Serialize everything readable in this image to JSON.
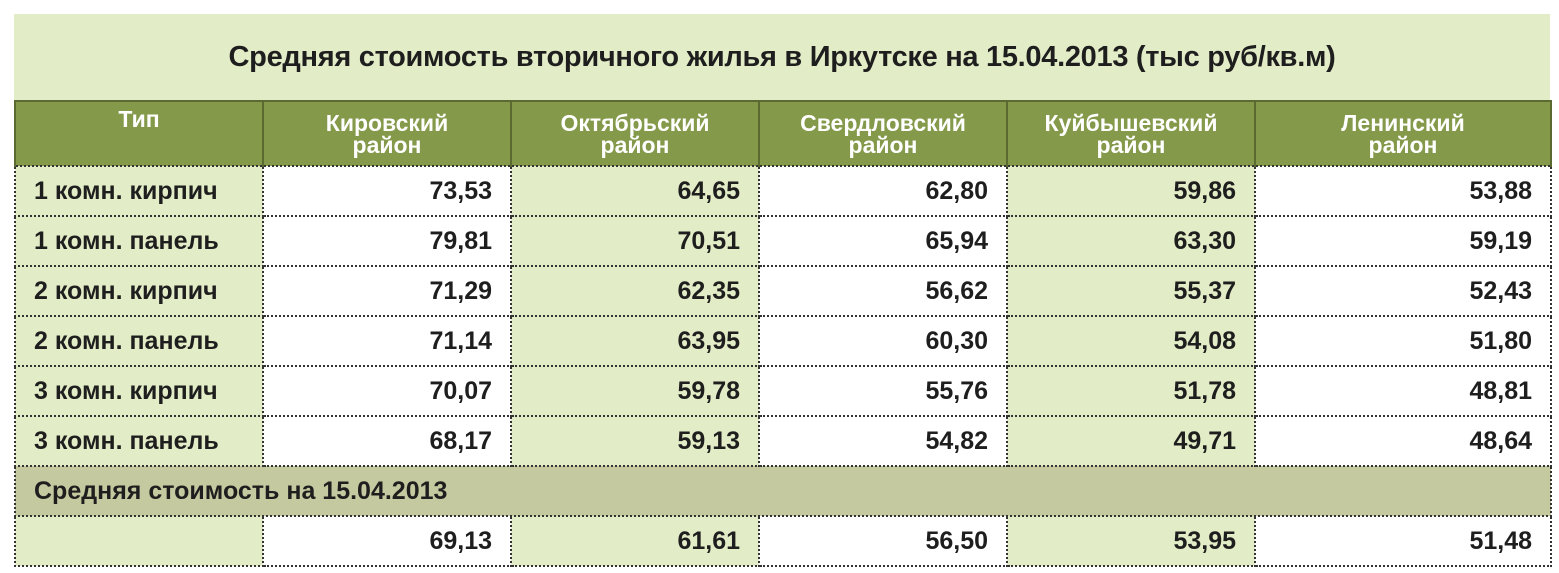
{
  "title": "Средняя стоимость вторичного жилья в Иркутске на 15.04.2013 (тыс руб/кв.м)",
  "headers": [
    {
      "line1": "Тип",
      "line2": ""
    },
    {
      "line1": "Кировский",
      "line2": "район"
    },
    {
      "line1": "Октябрьский",
      "line2": "район"
    },
    {
      "line1": "Свердловский",
      "line2": "район"
    },
    {
      "line1": "Куйбышевский",
      "line2": "район"
    },
    {
      "line1": "Ленинский",
      "line2": "район"
    }
  ],
  "rows": [
    {
      "type": "1 комн. кирпич",
      "values": [
        "73,53",
        "64,65",
        "62,80",
        "59,86",
        "53,88"
      ]
    },
    {
      "type": "1 комн. панель",
      "values": [
        "79,81",
        "70,51",
        "65,94",
        "63,30",
        "59,19"
      ]
    },
    {
      "type": "2 комн. кирпич",
      "values": [
        "71,29",
        "62,35",
        "56,62",
        "55,37",
        "52,43"
      ]
    },
    {
      "type": "2 комн. панель",
      "values": [
        "71,14",
        "63,95",
        "60,30",
        "54,08",
        "51,80"
      ]
    },
    {
      "type": "3 комн. кирпич",
      "values": [
        "70,07",
        "59,78",
        "55,76",
        "51,78",
        "48,81"
      ]
    },
    {
      "type": "3 комн. панель",
      "values": [
        "68,17",
        "59,13",
        "54,82",
        "49,71",
        "48,64"
      ]
    }
  ],
  "summary": {
    "label": "Средняя стоимость на 15.04.2013",
    "values": [
      "69,13",
      "61,61",
      "56,50",
      "53,95",
      "51,48"
    ]
  },
  "colors": {
    "header_bg": "#84994a",
    "light_green": "#e2ecc6",
    "summary_bg": "#c5c99f"
  }
}
